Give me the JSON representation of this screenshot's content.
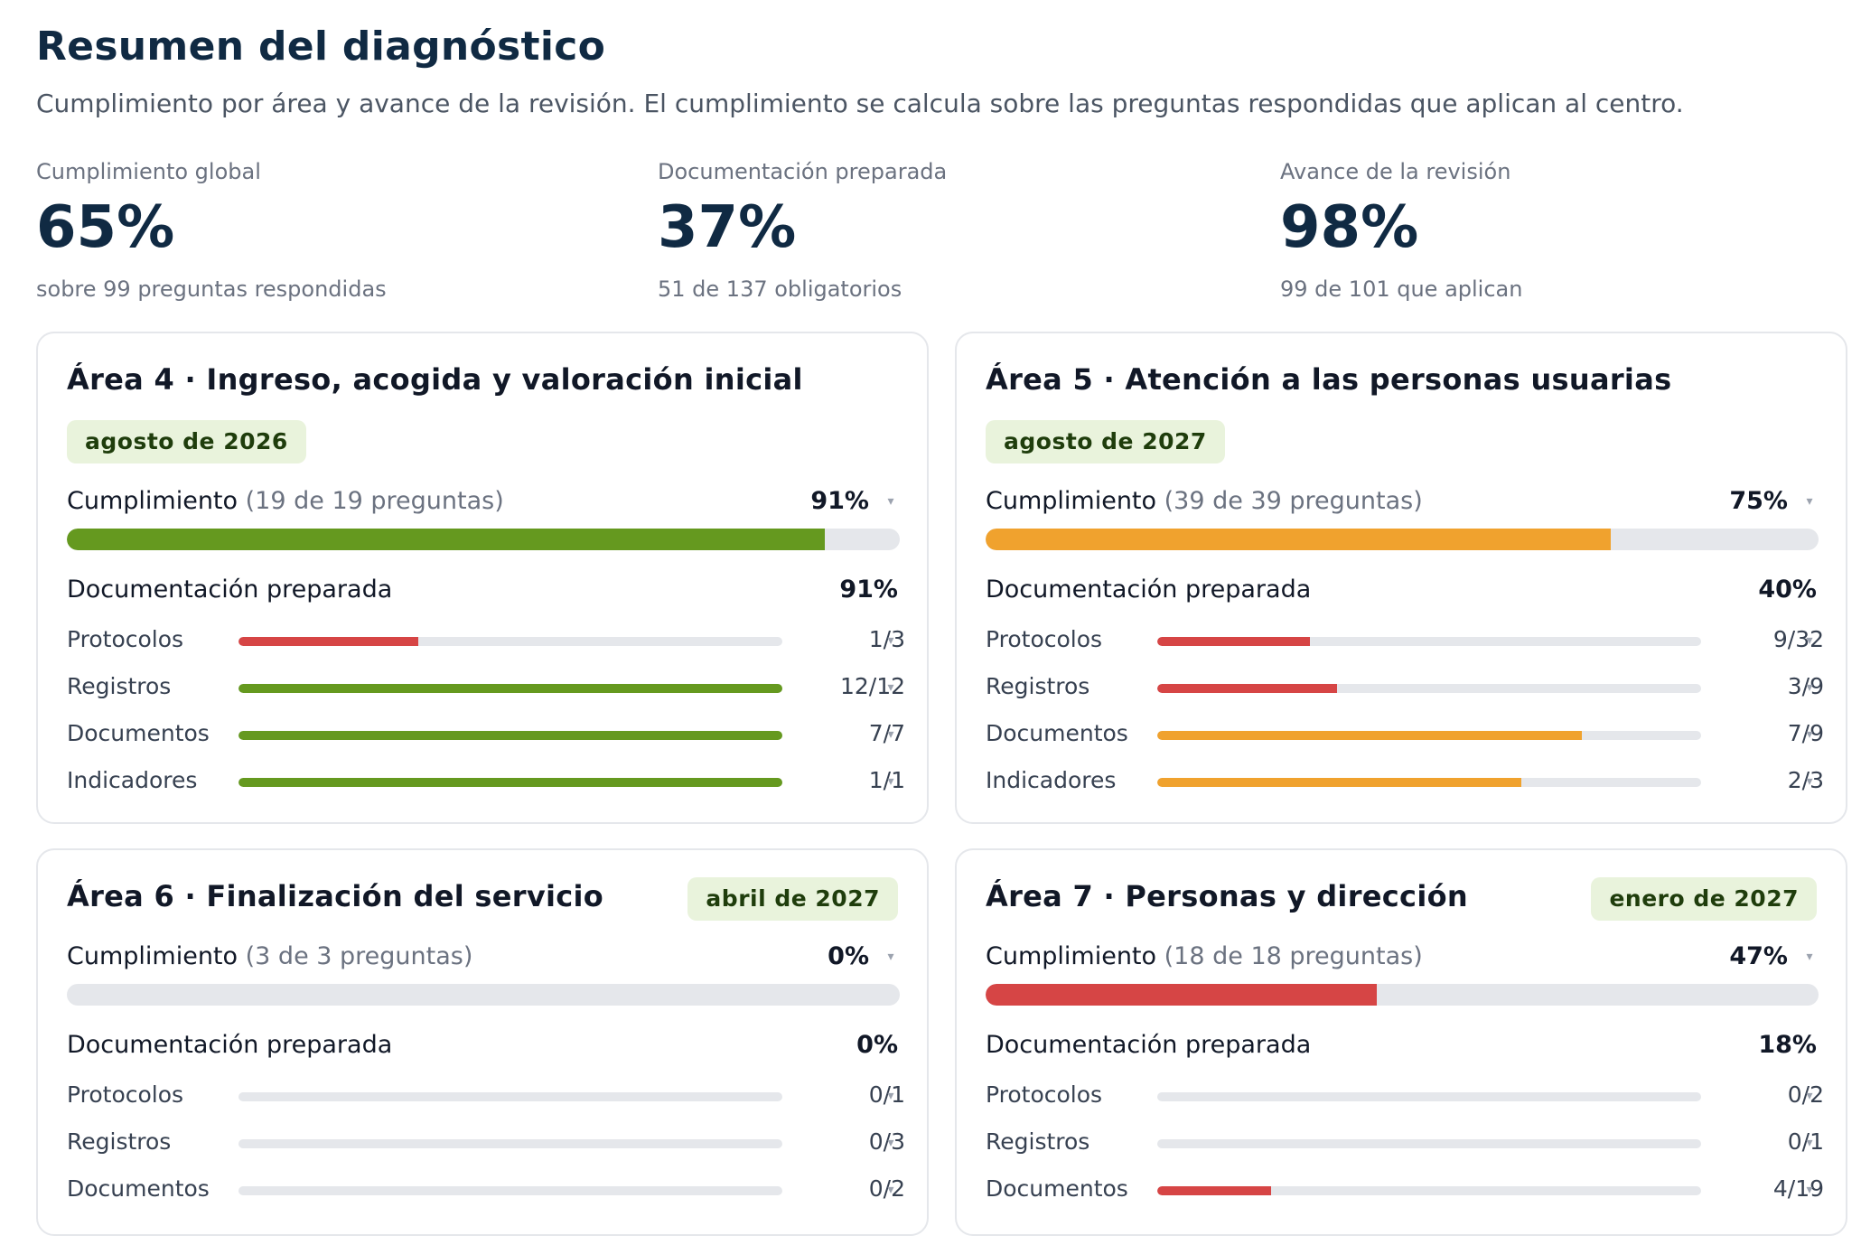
{
  "header": {
    "title": "Resumen del diagnóstico",
    "subtitle": "Cumplimiento por área y avance de la revisión. El cumplimiento se calcula sobre las preguntas respondidas que aplican al centro."
  },
  "kpis": [
    {
      "label": "Cumplimiento global",
      "value": "65%",
      "sub": "sobre 99 preguntas respondidas"
    },
    {
      "label": "Documentación preparada",
      "value": "37%",
      "sub": "51 de 137 obligatorios"
    },
    {
      "label": "Avance de la revisión",
      "value": "98%",
      "sub": "99 de 101 que aplican"
    }
  ],
  "labels": {
    "compliance": "Cumplimiento",
    "documentation": "Documentación preparada"
  },
  "colors": {
    "green": "#65991f",
    "orange": "#f0a22e",
    "red": "#d64545",
    "track": "#e5e7eb",
    "badge_bg": "#e9f3dc"
  },
  "cards": [
    {
      "title": "Área 4 · Ingreso, acogida y valoración inicial",
      "badge": "agosto de 2026",
      "compliance_detail": "(19 de 19 preguntas)",
      "compliance_value": "91%",
      "compliance_pct": 91,
      "compliance_color": "green",
      "documentation_value": "91%",
      "items": [
        {
          "label": "Protocolos",
          "count": "1/3",
          "pct": 33,
          "color": "red"
        },
        {
          "label": "Registros",
          "count": "12/12",
          "pct": 100,
          "color": "green"
        },
        {
          "label": "Documentos",
          "count": "7/7",
          "pct": 100,
          "color": "green"
        },
        {
          "label": "Indicadores",
          "count": "1/1",
          "pct": 100,
          "color": "green"
        }
      ]
    },
    {
      "title": "Área 5 · Atención a las personas usuarias",
      "badge": "agosto de 2027",
      "compliance_detail": "(39 de 39 preguntas)",
      "compliance_value": "75%",
      "compliance_pct": 75,
      "compliance_color": "orange",
      "documentation_value": "40%",
      "items": [
        {
          "label": "Protocolos",
          "count": "9/32",
          "pct": 28,
          "color": "red"
        },
        {
          "label": "Registros",
          "count": "3/9",
          "pct": 33,
          "color": "red"
        },
        {
          "label": "Documentos",
          "count": "7/9",
          "pct": 78,
          "color": "orange"
        },
        {
          "label": "Indicadores",
          "count": "2/3",
          "pct": 67,
          "color": "orange"
        }
      ]
    },
    {
      "title": "Área 6 · Finalización del servicio",
      "badge": "abril de 2027",
      "compliance_detail": "(3 de 3 preguntas)",
      "compliance_value": "0%",
      "compliance_pct": 0,
      "compliance_color": "red",
      "documentation_value": "0%",
      "items": [
        {
          "label": "Protocolos",
          "count": "0/1",
          "pct": 0,
          "color": "red"
        },
        {
          "label": "Registros",
          "count": "0/3",
          "pct": 0,
          "color": "red"
        },
        {
          "label": "Documentos",
          "count": "0/2",
          "pct": 0,
          "color": "red"
        }
      ]
    },
    {
      "title": "Área 7 · Personas y dirección",
      "badge": "enero de 2027",
      "compliance_detail": "(18 de 18 preguntas)",
      "compliance_value": "47%",
      "compliance_pct": 47,
      "compliance_color": "red",
      "documentation_value": "18%",
      "items": [
        {
          "label": "Protocolos",
          "count": "0/2",
          "pct": 0,
          "color": "red"
        },
        {
          "label": "Registros",
          "count": "0/1",
          "pct": 0,
          "color": "red"
        },
        {
          "label": "Documentos",
          "count": "4/19",
          "pct": 21,
          "color": "red"
        }
      ]
    }
  ]
}
